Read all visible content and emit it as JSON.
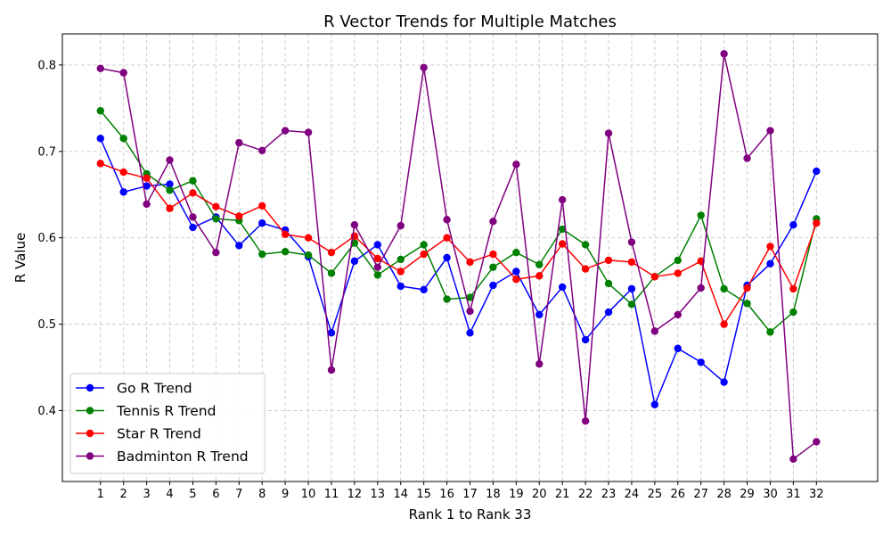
{
  "chart_data": {
    "type": "line",
    "title": "R Vector Trends for Multiple Matches",
    "xlabel": "Rank 1 to Rank 33",
    "ylabel": "R Value",
    "x": [
      1,
      2,
      3,
      4,
      5,
      6,
      7,
      8,
      9,
      10,
      11,
      12,
      13,
      14,
      15,
      16,
      17,
      18,
      19,
      20,
      21,
      22,
      23,
      24,
      25,
      26,
      27,
      28,
      29,
      30,
      31,
      32
    ],
    "xlim": [
      -0.65,
      34.65
    ],
    "ylim": [
      0.318,
      0.836
    ],
    "yticks": [
      0.4,
      0.5,
      0.6,
      0.7,
      0.8
    ],
    "yticks_labels": [
      "0.4",
      "0.5",
      "0.6",
      "0.7",
      "0.8"
    ],
    "grid": true,
    "legend_position": "lower-left",
    "marker": "circle",
    "series": [
      {
        "name": "Go R Trend",
        "color": "#0000ff",
        "values": [
          0.715,
          0.653,
          0.66,
          0.662,
          0.612,
          0.624,
          0.591,
          0.617,
          0.609,
          0.578,
          0.49,
          0.573,
          0.592,
          0.544,
          0.54,
          0.577,
          0.49,
          0.545,
          0.561,
          0.511,
          0.543,
          0.482,
          0.514,
          0.541,
          0.407,
          0.472,
          0.456,
          0.433,
          0.545,
          0.57,
          0.615,
          0.677
        ]
      },
      {
        "name": "Tennis R Trend",
        "color": "#008000",
        "values": [
          0.747,
          0.715,
          0.674,
          0.655,
          0.666,
          0.622,
          0.62,
          0.581,
          0.584,
          0.58,
          0.559,
          0.594,
          0.557,
          0.575,
          0.592,
          0.529,
          0.531,
          0.566,
          0.583,
          0.569,
          0.61,
          0.592,
          0.547,
          0.523,
          0.555,
          0.574,
          0.626,
          0.541,
          0.524,
          0.491,
          0.514,
          0.622
        ]
      },
      {
        "name": "Star R Trend",
        "color": "#ff0000",
        "values": [
          0.686,
          0.676,
          0.669,
          0.634,
          0.652,
          0.636,
          0.625,
          0.637,
          0.604,
          0.6,
          0.583,
          0.602,
          0.576,
          0.561,
          0.581,
          0.6,
          0.572,
          0.581,
          0.552,
          0.556,
          0.593,
          0.564,
          0.574,
          0.572,
          0.555,
          0.559,
          0.573,
          0.5,
          0.542,
          0.59,
          0.541,
          0.617
        ]
      },
      {
        "name": "Badminton R Trend",
        "color": "#800080",
        "values": [
          0.796,
          0.791,
          0.639,
          0.69,
          0.624,
          0.583,
          0.71,
          0.701,
          0.724,
          0.722,
          0.447,
          0.615,
          0.566,
          0.614,
          0.797,
          0.621,
          0.515,
          0.619,
          0.685,
          0.454,
          0.644,
          0.388,
          0.721,
          0.595,
          0.492,
          0.511,
          0.542,
          0.813,
          0.692,
          0.724,
          0.344,
          0.364
        ]
      }
    ]
  }
}
